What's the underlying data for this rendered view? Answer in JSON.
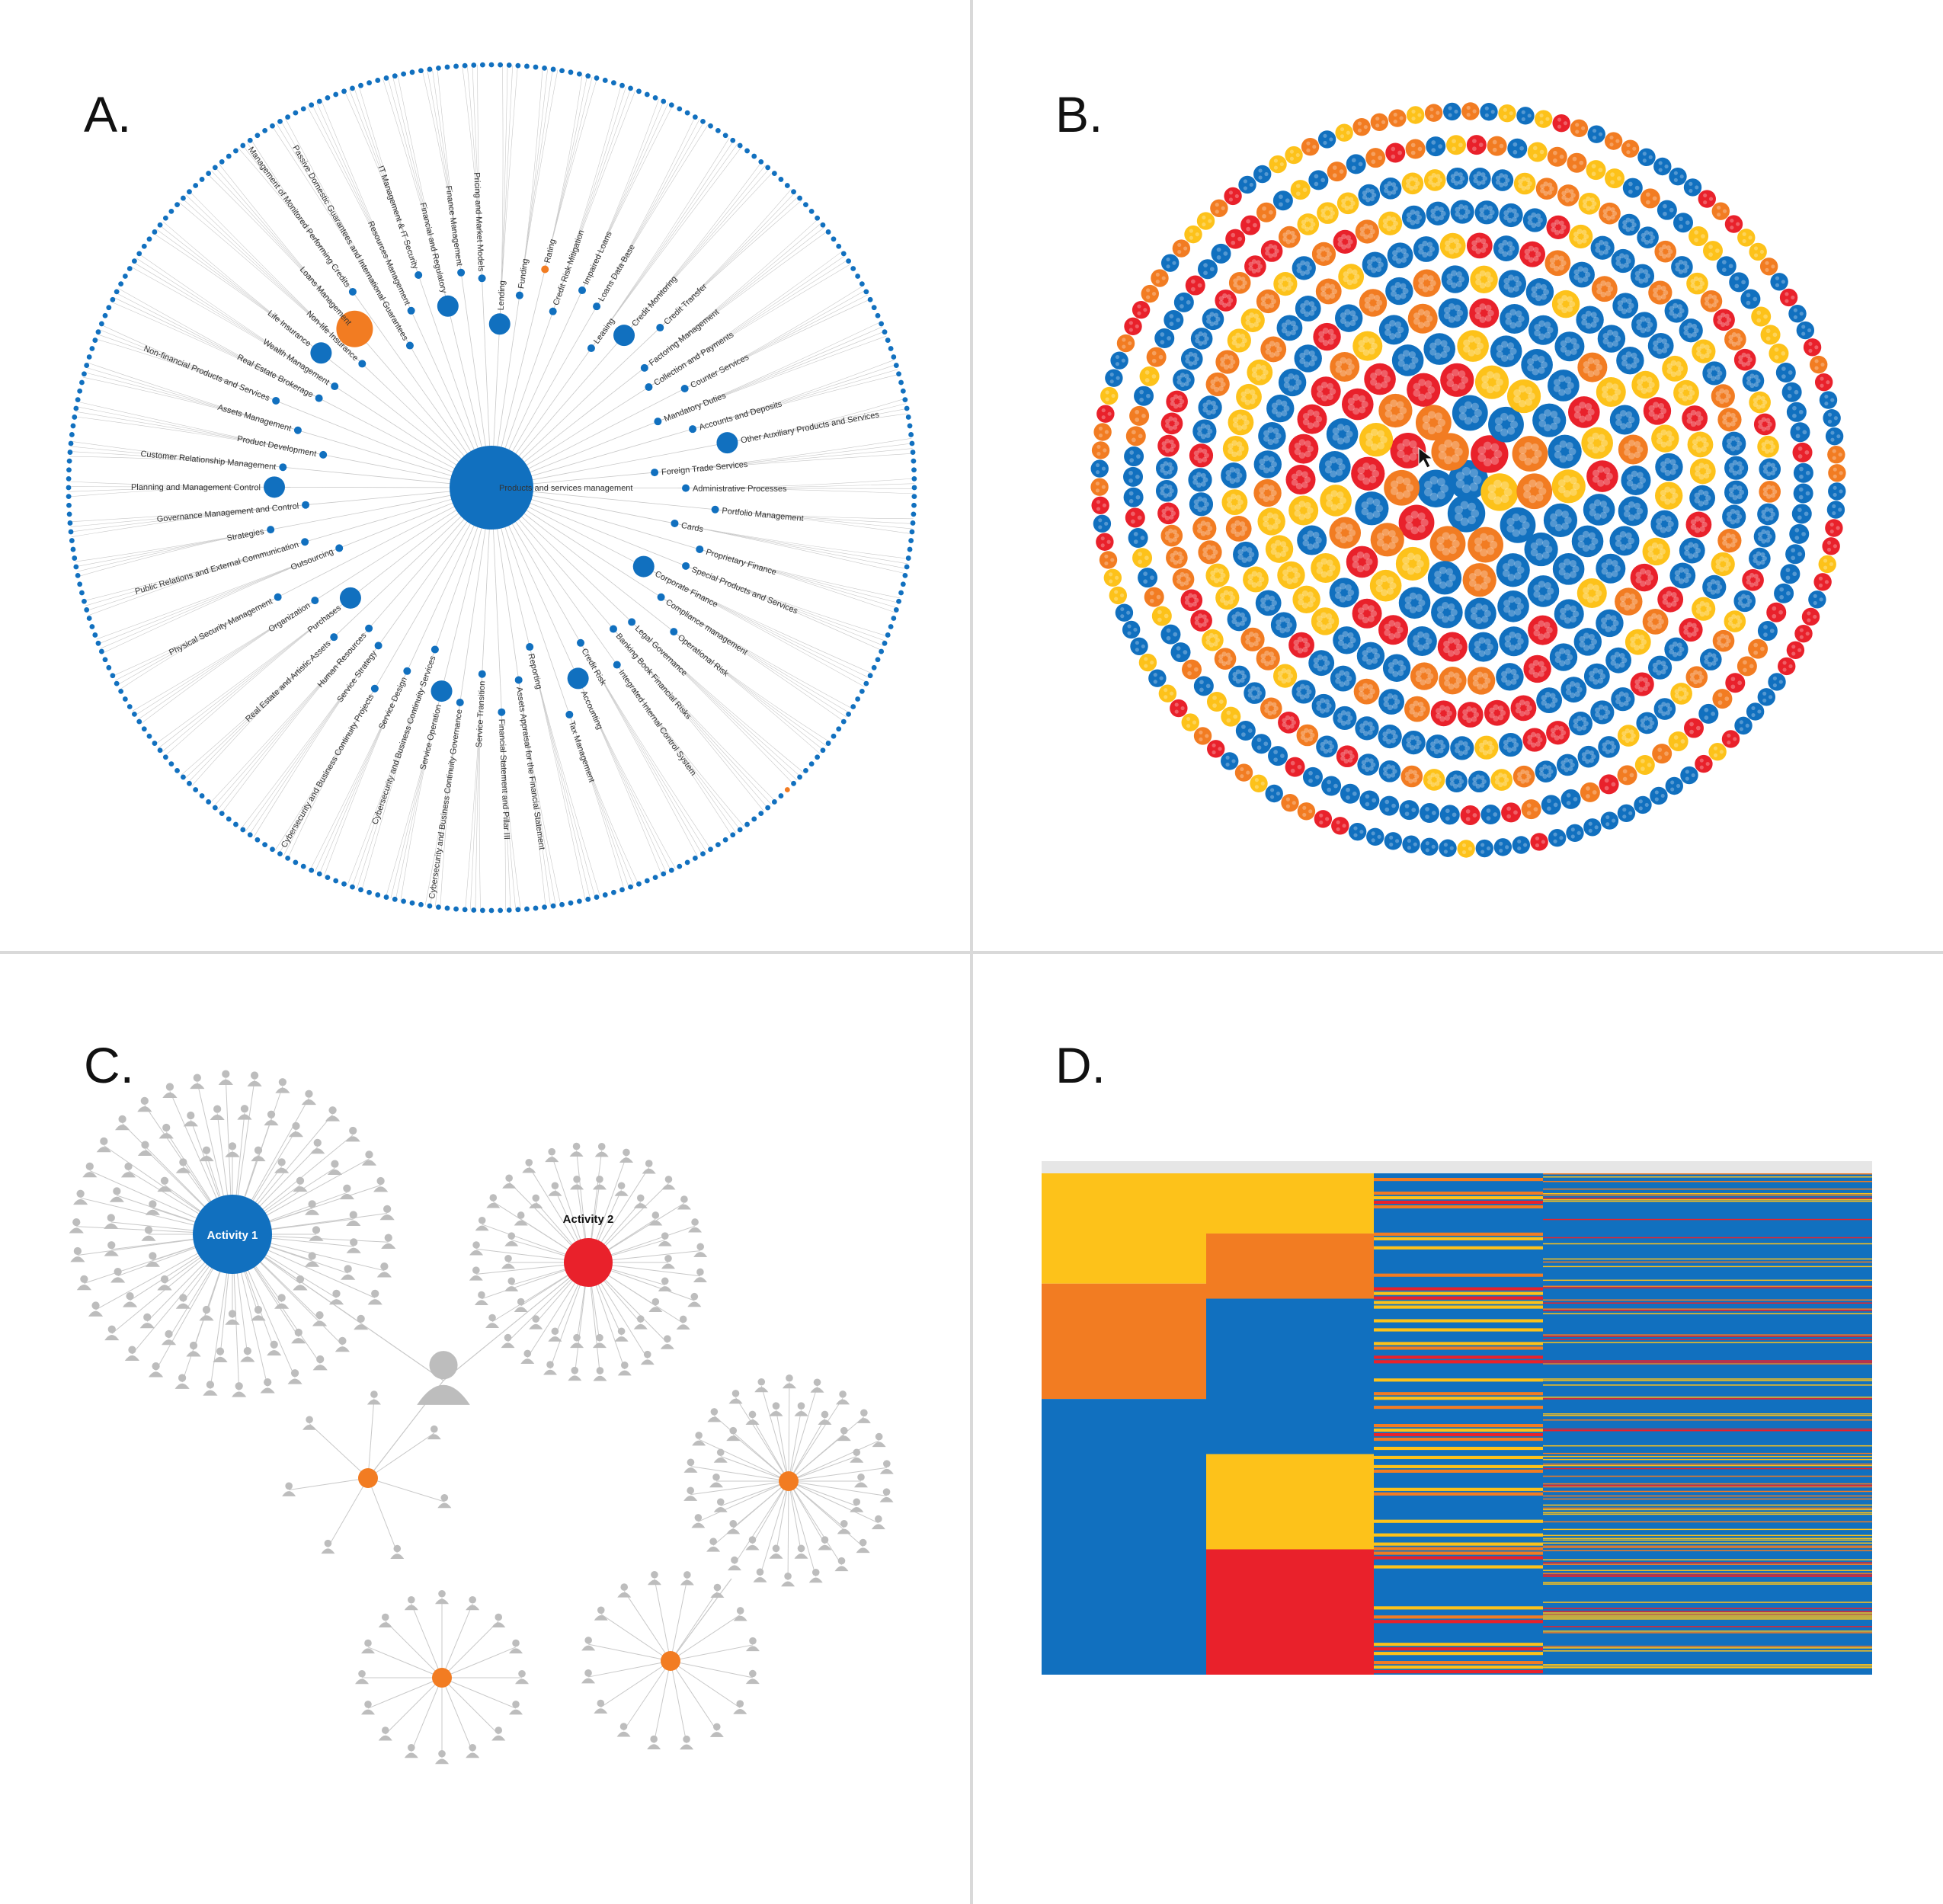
{
  "colors": {
    "blue": "#1170bf",
    "red": "#e9212b",
    "orange": "#f27c22",
    "yellow": "#fdc21a",
    "gray": "#bdbdbd",
    "edge": "#c8c8c8"
  },
  "panels": {
    "a": {
      "letter": "A."
    },
    "b": {
      "letter": "B."
    },
    "c": {
      "letter": "C."
    },
    "d": {
      "letter": "D."
    }
  },
  "tree_a": {
    "root_label": "Products and services management",
    "branch_labels": [
      "Lending",
      "Funding",
      "Rating",
      "Credit Risk Mitigation",
      "Impaired Loans",
      "Loans Data Base",
      "Leasing",
      "Credit Monitoring",
      "Credit Transfer",
      "Factoring Management",
      "Collection and Payments",
      "Counter Services",
      "Mandatory Duties",
      "Accounts and Deposits",
      "Other Auxiliary Products and Services",
      "Foreign Trade Services",
      "Administrative Processes",
      "Portfolio Management",
      "Cards",
      "Proprietary Finance",
      "Special Products and Services",
      "Corporate Finance",
      "Compliance management",
      "Operational Risk",
      "Legal Governance",
      "Banking Book Financial Risks",
      "Integrated Internal Control System",
      "Credit Risk",
      "Accounting",
      "Tax Management",
      "Reporting",
      "Assets Appraisal for the Financial Statement",
      "Financial Statement and Pillar III",
      "Service Transition",
      "Cybersecurity and Business Continuity Governance",
      "Service Operation",
      "Cybersecurity and Business Continuity Services",
      "Service Design",
      "Cybersecurity and Business Continuity Projects",
      "Service Strategy",
      "Human Resources",
      "Real Estate and Artistic Assets",
      "Purchases",
      "Organization",
      "Physical Security Management",
      "Outsourcing",
      "Public Relations and External Communication",
      "Strategies",
      "Governance Management and Control",
      "Planning and Management Control",
      "Customer Relationship Management",
      "Product Development",
      "Assets Management",
      "Non-financial Products and Services",
      "Real Estate Brokerage",
      "Wealth Management",
      "Life Insurance",
      "Non-life Insurance",
      "Loans Management",
      "Management of Monitored Performing Credits",
      "Passive Domestic Guarantees and International Guarantees",
      "Resources Management",
      "IT Management & IT Security",
      "Financial and Regulatory",
      "Finance Management",
      "Pricing and Market Models"
    ]
  },
  "network_c": {
    "activity_1": "Activity 1",
    "activity_2": "Activity 2"
  }
}
